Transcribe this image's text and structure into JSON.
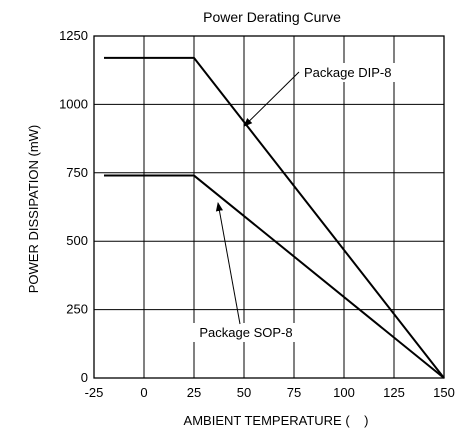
{
  "chart_data": {
    "type": "line",
    "title": "Power Derating Curve",
    "xlabel": "AMBIENT TEMPERATURE (    )",
    "ylabel": "POWER DISSIPATION (mW)",
    "xlim": [
      -25,
      150
    ],
    "ylim": [
      0,
      1250
    ],
    "x_ticks": [
      -25,
      0,
      25,
      50,
      75,
      100,
      125,
      150
    ],
    "x_tick_labels": [
      "-25",
      "0",
      "25",
      "50",
      "75",
      "100",
      "125",
      "150"
    ],
    "y_ticks": [
      0,
      250,
      500,
      750,
      1000,
      1250
    ],
    "y_tick_labels": [
      "0",
      "250",
      "500",
      "750",
      "1000",
      "1250"
    ],
    "grid": true,
    "series": [
      {
        "name": "Package DIP-8",
        "x": [
          -20,
          25,
          150
        ],
        "y": [
          1170,
          1170,
          0
        ]
      },
      {
        "name": "Package SOP-8",
        "x": [
          -20,
          25,
          150
        ],
        "y": [
          740,
          740,
          0
        ]
      }
    ],
    "annotations": [
      {
        "text": "Package DIP-8",
        "series": 0,
        "arrow_to": {
          "x": 50,
          "y": 920
        }
      },
      {
        "text": "Package SOP-8",
        "series": 1,
        "arrow_to": {
          "x": 37,
          "y": 640
        }
      }
    ]
  }
}
